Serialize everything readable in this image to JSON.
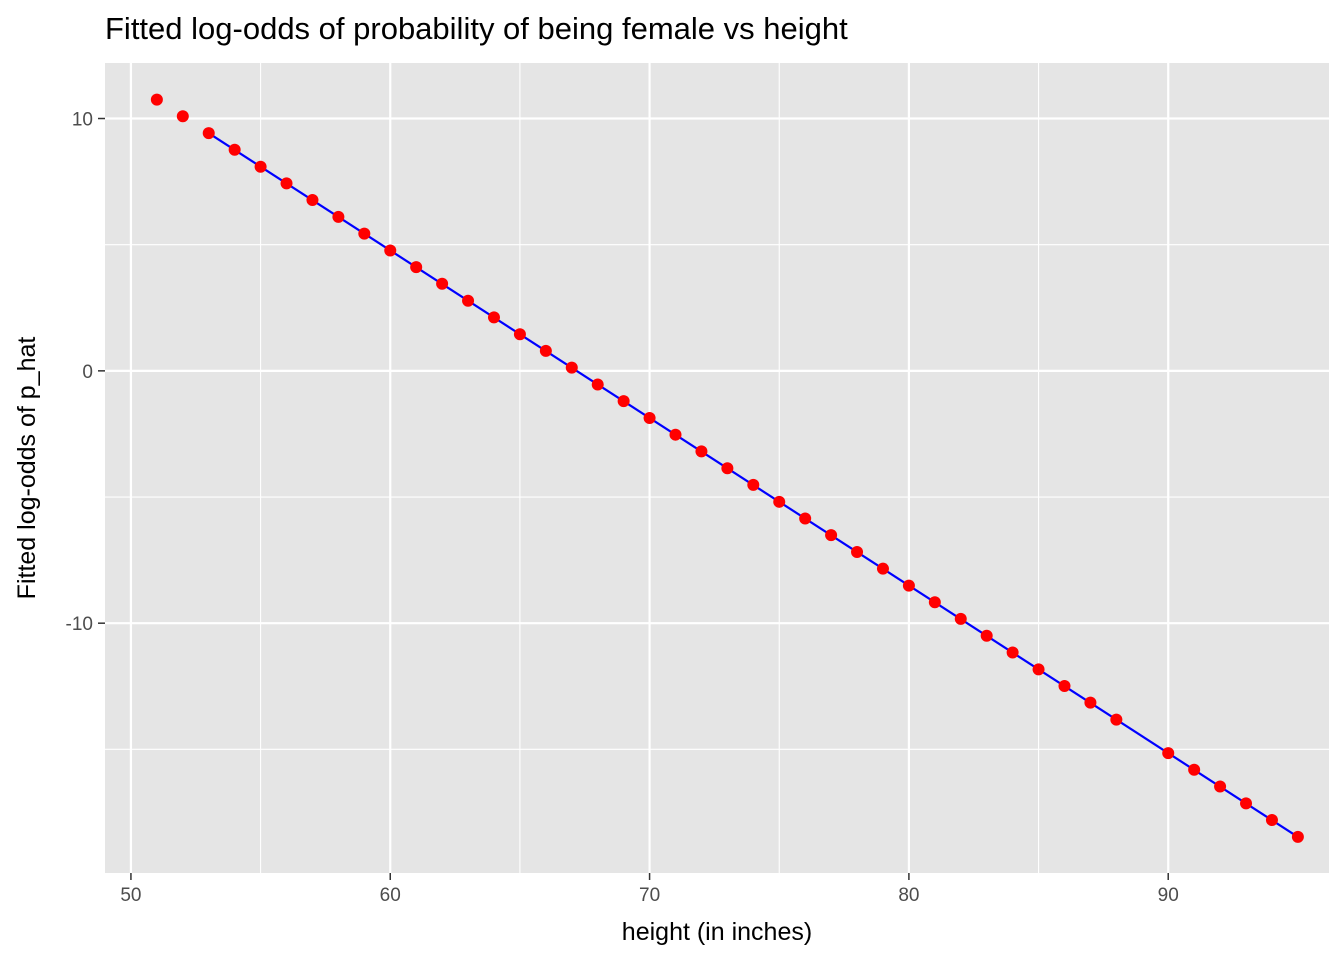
{
  "chart_data": {
    "type": "scatter",
    "title": "Fitted log-odds of probability of being female vs height",
    "xlabel": "height (in inches)",
    "ylabel": "Fitted log-odds of p_hat",
    "xlim": [
      49,
      96.2
    ],
    "ylim": [
      -19.9,
      12.2
    ],
    "x_ticks": [
      50,
      60,
      70,
      80,
      90
    ],
    "x_tick_labels": [
      "50",
      "60",
      "70",
      "80",
      "90"
    ],
    "y_ticks": [
      10,
      0,
      -10
    ],
    "y_tick_labels": [
      "10",
      "0",
      "-10"
    ],
    "grid": true,
    "legend": "none",
    "colors": {
      "panel": "#e5e5e5",
      "grid": "#ffffff",
      "points": "#ff0000",
      "line": "#0000ff",
      "tick_text": "#4d4d4d",
      "tick_mark": "#333333"
    },
    "series": [
      {
        "kind": "points",
        "x": [
          51,
          52,
          53,
          54,
          55,
          56,
          57,
          58,
          59,
          60,
          61,
          62,
          63,
          64,
          65,
          66,
          67,
          68,
          69,
          70,
          71,
          72,
          73,
          74,
          75,
          76,
          77,
          78,
          79,
          80,
          81,
          82,
          83,
          84,
          85,
          86,
          87,
          88,
          90,
          91,
          92,
          93,
          94,
          95
        ],
        "y": [
          10.75,
          10.09,
          9.42,
          8.76,
          8.09,
          7.43,
          6.77,
          6.1,
          5.44,
          4.77,
          4.11,
          3.45,
          2.78,
          2.12,
          1.45,
          0.79,
          0.13,
          -0.54,
          -1.2,
          -1.87,
          -2.53,
          -3.19,
          -3.86,
          -4.52,
          -5.19,
          -5.85,
          -6.51,
          -7.18,
          -7.84,
          -8.51,
          -9.17,
          -9.83,
          -10.5,
          -11.16,
          -11.83,
          -12.49,
          -13.15,
          -13.82,
          -15.15,
          -15.81,
          -16.47,
          -17.14,
          -17.8,
          -18.47
        ]
      },
      {
        "kind": "line",
        "x": [
          53,
          95
        ],
        "y": [
          9.42,
          -18.47
        ]
      }
    ]
  }
}
